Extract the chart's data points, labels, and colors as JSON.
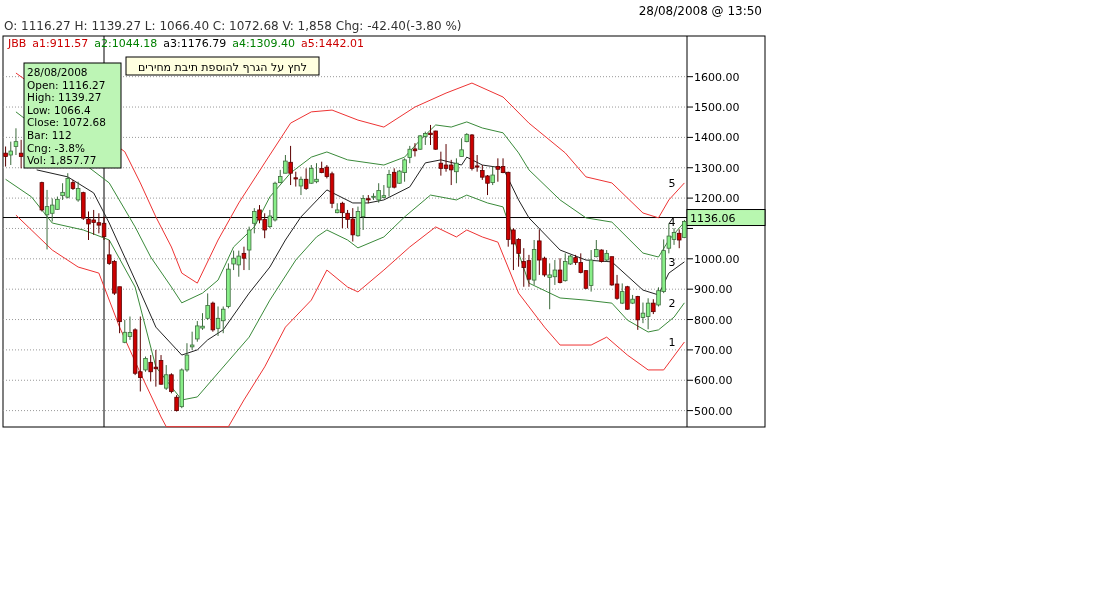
{
  "chart_data": {
    "type": "candlestick",
    "subtitle": "28/08/2008 @ 13:50",
    "annotations": [
      "O: 1116.27 H: 1139.27 L: 1066.40 C: 1072.68 V: 1,858 Chg: -42.40(-3.80 %)",
      "JBB",
      "a1:911.57",
      "a2:1044.18",
      "a3:1176.79",
      "a4:1309.40",
      "a5:1442.01",
      "28/08/2008",
      "Open:  1116.27",
      "High:  1139.27",
      "Low:  1066.4",
      "Close:  1072.68",
      "Bar:  112",
      "Cng:  -3.8%",
      "Vol:  1,857.77",
      "לחץ על הגרף להוספת תיבת מחירים"
    ],
    "categories": [
      null,
      null,
      null,
      null,
      null,
      null,
      null,
      null,
      null,
      null,
      null,
      null,
      null,
      null,
      null,
      null,
      null,
      null,
      null,
      null,
      null,
      null,
      null,
      null,
      null,
      null,
      null,
      null,
      null,
      null,
      null,
      null,
      null,
      null,
      null,
      null,
      null,
      null,
      null,
      null,
      null,
      null,
      null,
      null,
      null,
      null,
      null,
      null,
      null,
      null,
      null,
      null,
      null,
      null,
      null,
      null,
      null,
      null,
      null,
      null,
      null,
      null,
      null,
      null,
      null,
      null,
      null,
      null,
      null,
      null,
      null,
      null,
      null,
      null,
      null,
      null,
      null,
      null,
      null,
      null,
      null,
      null,
      null,
      null,
      null,
      null,
      null,
      null,
      null,
      null,
      null,
      null,
      null,
      null,
      null,
      null,
      null,
      null,
      null,
      null,
      null,
      null,
      null,
      null,
      null,
      null,
      null,
      null,
      null,
      null,
      null,
      null,
      null,
      null,
      null,
      null,
      null,
      null,
      null,
      null,
      null,
      null,
      null,
      null,
      null,
      null,
      null,
      null,
      null,
      null,
      null,
      null
    ],
    "ohlc": [
      [
        1348,
        1370,
        1304,
        1337
      ],
      [
        1342,
        1386,
        1309,
        1355
      ],
      [
        1370,
        1430,
        1342,
        1386
      ],
      [
        1348,
        1392,
        1298,
        1337
      ],
      null,
      null,
      null,
      [
        1251,
        1254,
        1156,
        1161
      ],
      [
        1145,
        1227,
        1031,
        1172
      ],
      [
        1150,
        1199,
        1123,
        1177
      ],
      [
        1163,
        1205,
        1161,
        1196
      ],
      [
        1208,
        1249,
        1194,
        1219
      ],
      [
        1203,
        1282,
        1199,
        1265
      ],
      [
        1251,
        1260,
        1227,
        1232
      ],
      [
        1194,
        1254,
        1188,
        1232
      ],
      [
        1218,
        1221,
        1128,
        1134
      ],
      [
        1131,
        1156,
        1062,
        1115
      ],
      [
        1128,
        1161,
        1079,
        1120
      ],
      [
        1119,
        1150,
        1084,
        1111
      ],
      [
        1117,
        1139,
        1062,
        1073
      ],
      [
        1013,
        1062,
        980,
        985
      ],
      [
        991,
        996,
        881,
        887
      ],
      [
        908,
        908,
        755,
        793
      ],
      [
        725,
        799,
        722,
        758
      ],
      [
        744,
        810,
        733,
        757
      ],
      [
        766,
        771,
        617,
        623
      ],
      [
        628,
        810,
        563,
        609
      ],
      [
        634,
        678,
        628,
        672
      ],
      [
        659,
        683,
        596,
        628
      ],
      [
        643,
        700,
        579,
        638
      ],
      [
        665,
        683,
        585,
        587
      ],
      [
        574,
        650,
        568,
        618
      ],
      [
        618,
        623,
        557,
        563
      ],
      [
        544,
        551,
        497,
        500
      ],
      [
        513,
        639,
        508,
        634
      ],
      [
        634,
        722,
        628,
        683
      ],
      [
        710,
        760,
        700,
        716
      ],
      [
        736,
        795,
        727,
        779
      ],
      [
        772,
        821,
        766,
        778
      ],
      [
        804,
        886,
        799,
        846
      ],
      [
        854,
        859,
        760,
        766
      ],
      [
        771,
        843,
        746,
        804
      ],
      [
        796,
        843,
        755,
        834
      ],
      [
        843,
        985,
        837,
        966
      ],
      [
        983,
        1027,
        963,
        1002
      ],
      [
        980,
        1027,
        941,
        1009
      ],
      [
        1018,
        1040,
        963,
        1002
      ],
      [
        1029,
        1106,
        963,
        1095
      ],
      [
        1117,
        1167,
        1084,
        1156
      ],
      [
        1161,
        1177,
        1117,
        1128
      ],
      [
        1130,
        1150,
        1068,
        1095
      ],
      [
        1106,
        1161,
        1101,
        1141
      ],
      [
        1128,
        1254,
        1123,
        1249
      ],
      [
        1251,
        1293,
        1249,
        1271
      ],
      [
        1282,
        1342,
        1282,
        1322
      ],
      [
        1318,
        1372,
        1243,
        1282
      ],
      [
        1267,
        1287,
        1238,
        1263
      ],
      [
        1240,
        1271,
        1210,
        1262
      ],
      [
        1262,
        1298,
        1227,
        1232
      ],
      [
        1249,
        1309,
        1247,
        1298
      ],
      [
        1254,
        1315,
        1249,
        1262
      ],
      [
        1298,
        1320,
        1282,
        1284
      ],
      [
        1302,
        1309,
        1265,
        1271
      ],
      [
        1280,
        1287,
        1167,
        1183
      ],
      [
        1152,
        1183,
        1150,
        1161
      ],
      [
        1183,
        1188,
        1101,
        1152
      ],
      [
        1150,
        1161,
        1101,
        1130
      ],
      [
        1131,
        1167,
        1057,
        1079
      ],
      [
        1076,
        1172,
        1073,
        1156
      ],
      [
        1139,
        1210,
        1095,
        1199
      ],
      [
        1198,
        1210,
        1183,
        1194
      ],
      [
        1203,
        1216,
        1194,
        1206
      ],
      [
        1194,
        1249,
        1185,
        1225
      ],
      [
        1202,
        1243,
        1199,
        1208
      ],
      [
        1236,
        1293,
        1205,
        1278
      ],
      [
        1285,
        1298,
        1232,
        1236
      ],
      [
        1249,
        1293,
        1247,
        1289
      ],
      [
        1284,
        1331,
        1254,
        1326
      ],
      [
        1334,
        1372,
        1315,
        1361
      ],
      [
        1362,
        1381,
        1337,
        1356
      ],
      [
        1361,
        1408,
        1359,
        1405
      ],
      [
        1403,
        1419,
        1375,
        1413
      ],
      [
        1414,
        1441,
        1375,
        1409
      ],
      [
        1421,
        1422,
        1359,
        1361
      ],
      [
        1315,
        1353,
        1274,
        1298
      ],
      [
        1309,
        1378,
        1287,
        1298
      ],
      [
        1309,
        1326,
        1243,
        1293
      ],
      [
        1287,
        1331,
        1249,
        1315
      ],
      [
        1337,
        1397,
        1337,
        1359
      ],
      [
        1386,
        1414,
        1384,
        1410
      ],
      [
        1408,
        1411,
        1291,
        1298
      ],
      [
        1306,
        1342,
        1287,
        1302
      ],
      [
        1291,
        1309,
        1260,
        1269
      ],
      [
        1273,
        1276,
        1210,
        1249
      ],
      [
        1251,
        1304,
        1243,
        1276
      ],
      [
        1304,
        1331,
        1254,
        1295
      ],
      [
        1304,
        1331,
        1282,
        1284
      ],
      [
        1285,
        1287,
        1040,
        1064
      ],
      [
        1095,
        1101,
        963,
        1049
      ],
      [
        1064,
        1068,
        974,
        1018
      ],
      [
        991,
        1035,
        908,
        971
      ],
      [
        994,
        1013,
        908,
        933
      ],
      [
        930,
        1062,
        914,
        1031
      ],
      [
        1059,
        1097,
        947,
        996
      ],
      [
        1002,
        1007,
        941,
        947
      ],
      [
        939,
        985,
        834,
        947
      ],
      [
        941,
        996,
        914,
        963
      ],
      [
        963,
        1002,
        919,
        922
      ],
      [
        928,
        1018,
        925,
        991
      ],
      [
        983,
        1013,
        980,
        1009
      ],
      [
        1004,
        1013,
        980,
        988
      ],
      [
        988,
        1018,
        952,
        955
      ],
      [
        961,
        963,
        900,
        903
      ],
      [
        912,
        1029,
        892,
        996
      ],
      [
        1007,
        1062,
        1005,
        1031
      ],
      [
        1029,
        1031,
        988,
        991
      ],
      [
        996,
        1029,
        991,
        1018
      ],
      [
        1007,
        1007,
        911,
        914
      ],
      [
        917,
        947,
        865,
        870
      ],
      [
        854,
        919,
        851,
        892
      ],
      [
        908,
        911,
        832,
        834
      ],
      [
        854,
        881,
        851,
        867
      ],
      [
        876,
        878,
        766,
        799
      ],
      [
        807,
        856,
        788,
        821
      ],
      [
        810,
        870,
        768,
        854
      ],
      [
        854,
        867,
        818,
        826
      ],
      [
        848,
        906,
        843,
        895
      ],
      [
        892,
        1064,
        887,
        1027
      ],
      [
        1035,
        1117,
        1018,
        1075
      ],
      [
        1064,
        1101,
        1046,
        1087
      ],
      [
        1084,
        1097,
        1035,
        1062
      ],
      [
        1070,
        1128,
        1068,
        1123
      ]
    ],
    "colors": [
      "#cc0000",
      "#88ee88",
      "#88ee88",
      "#cc0000",
      null,
      null,
      null,
      "#cc0000",
      "#88ee88",
      "#88ee88",
      "#88ee88",
      "#88ee88",
      "#88ee88",
      "#cc0000",
      "#88ee88",
      "#cc0000",
      "#cc0000",
      "#cc0000",
      "#cc0000",
      "#cc0000",
      "#cc0000",
      "#cc0000",
      "#cc0000",
      "#88ee88",
      "#88ee88",
      "#cc0000",
      "#cc0000",
      "#88ee88",
      "#cc0000",
      "#cc0000",
      "#cc0000",
      "#88ee88",
      "#cc0000",
      "#cc0000",
      "#88ee88",
      "#88ee88",
      "#88ee88",
      "#88ee88",
      "#88ee88",
      "#88ee88",
      "#cc0000",
      "#88ee88",
      "#88ee88",
      "#88ee88",
      "#88ee88",
      "#88ee88",
      "#cc0000",
      "#88ee88",
      "#88ee88",
      "#cc0000",
      "#cc0000",
      "#88ee88",
      "#88ee88",
      "#88ee88",
      "#88ee88",
      "#cc0000",
      "#cc0000",
      "#88ee88",
      "#cc0000",
      "#88ee88",
      "#88ee88",
      "#cc0000",
      "#cc0000",
      "#cc0000",
      "#88ee88",
      "#cc0000",
      "#cc0000",
      "#cc0000",
      "#88ee88",
      "#88ee88",
      "#cc0000",
      "#88ee88",
      "#88ee88",
      "#88ee88",
      "#88ee88",
      "#cc0000",
      "#88ee88",
      "#88ee88",
      "#88ee88",
      "#cc0000",
      "#88ee88",
      "#88ee88",
      "#cc0000",
      "#cc0000",
      "#cc0000",
      "#cc0000",
      "#cc0000",
      "#88ee88",
      "#88ee88",
      "#88ee88",
      "#cc0000",
      "#cc0000",
      "#cc0000",
      "#cc0000",
      "#88ee88",
      "#cc0000",
      "#cc0000",
      "#cc0000",
      "#cc0000",
      "#cc0000",
      "#cc0000",
      "#cc0000",
      "#88ee88",
      "#cc0000",
      "#cc0000",
      "#88ee88",
      "#88ee88",
      "#cc0000",
      "#88ee88",
      "#88ee88",
      "#cc0000",
      "#cc0000",
      "#cc0000",
      "#88ee88",
      "#88ee88",
      "#cc0000",
      "#88ee88",
      "#cc0000",
      "#cc0000",
      "#88ee88",
      "#cc0000",
      "#88ee88",
      "#cc0000",
      "#88ee88",
      "#88ee88",
      "#cc0000",
      "#88ee88",
      "#88ee88",
      "#88ee88",
      "#88ee88",
      "#cc0000",
      "#88ee88"
    ],
    "series": [
      {
        "type": "line",
        "name": "5",
        "color": "#ee3333",
        "values": [
          null,
          null,
          1612,
          null,
          null,
          null,
          null,
          null,
          null,
          null,
          null,
          null,
          null,
          null,
          null,
          null,
          null,
          null,
          null,
          null,
          null,
          null,
          null,
          1353,
          null,
          null,
          1250,
          null,
          null,
          1138,
          null,
          null,
          1039,
          null,
          953,
          null,
          null,
          920,
          null,
          null,
          null,
          1062,
          null,
          null,
          null,
          1184,
          null,
          null,
          null,
          null,
          1316,
          null,
          null,
          null,
          null,
          1447,
          null,
          null,
          null,
          1484,
          null,
          null,
          null,
          1490,
          null,
          null,
          null,
          null,
          1457,
          null,
          null,
          null,
          null,
          1434,
          null,
          null,
          null,
          null,
          null,
          1500,
          null,
          null,
          null,
          null,
          null,
          1546,
          null,
          null,
          null,
          null,
          1579,
          null,
          null,
          null,
          null,
          null,
          1533,
          null,
          null,
          null,
          null,
          1447,
          null,
          null,
          null,
          null,
          null,
          null,
          1349,
          null,
          null,
          null,
          1270,
          null,
          null,
          null,
          null,
          1250,
          null,
          null,
          null,
          null,
          null,
          1151,
          null,
          null,
          1135,
          null,
          1194,
          null,
          null,
          1250
        ]
      },
      {
        "type": "line",
        "name": "4",
        "color": "#3a8a3a",
        "values": [
          null,
          null,
          1484,
          null,
          null,
          null,
          null,
          null,
          null,
          null,
          null,
          null,
          null,
          null,
          null,
          null,
          null,
          null,
          null,
          null,
          1250,
          null,
          null,
          null,
          null,
          1105,
          null,
          null,
          1006,
          null,
          null,
          null,
          907,
          null,
          855,
          null,
          null,
          null,
          887,
          null,
          null,
          930,
          null,
          null,
          1039,
          null,
          null,
          null,
          1105,
          null,
          null,
          1204,
          null,
          null,
          null,
          1283,
          null,
          null,
          null,
          1335,
          null,
          null,
          1352,
          null,
          null,
          null,
          1326,
          null,
          null,
          null,
          null,
          null,
          null,
          1309,
          null,
          null,
          null,
          1335,
          null,
          null,
          1391,
          null,
          null,
          1441,
          null,
          null,
          1434,
          null,
          null,
          1451,
          null,
          null,
          1431,
          null,
          null,
          null,
          1415,
          null,
          null,
          1349,
          null,
          1293,
          null,
          null,
          null,
          null,
          null,
          1194,
          null,
          null,
          null,
          null,
          1135,
          null,
          null,
          null,
          null,
          1121,
          null,
          null,
          null,
          null,
          null,
          1019,
          null,
          null,
          1006,
          null,
          1062,
          null,
          null,
          1121
        ]
      },
      {
        "type": "line",
        "name": "3",
        "color": "#222222",
        "values": [
          null,
          null,
          null,
          null,
          null,
          null,
          1293,
          null,
          null,
          null,
          null,
          null,
          1270,
          null,
          null,
          null,
          null,
          1217,
          null,
          null,
          1118,
          null,
          null,
          null,
          null,
          930,
          null,
          null,
          null,
          775,
          null,
          null,
          null,
          null,
          683,
          null,
          null,
          700,
          null,
          733,
          null,
          null,
          766,
          null,
          null,
          null,
          null,
          887,
          null,
          null,
          null,
          973,
          null,
          null,
          1062,
          null,
          null,
          1138,
          null,
          null,
          null,
          null,
          1227,
          null,
          null,
          null,
          null,
          1184,
          null,
          null,
          1184,
          null,
          null,
          1194,
          null,
          null,
          null,
          null,
          1237,
          null,
          null,
          1316,
          null,
          null,
          1326,
          null,
          null,
          null,
          1309,
          1335,
          null,
          null,
          1309,
          null,
          null,
          null,
          1299,
          null,
          null,
          1194,
          null,
          1135,
          null,
          null,
          null,
          null,
          null,
          1029,
          null,
          null,
          null,
          null,
          996,
          null,
          null,
          null,
          null,
          990,
          null,
          null,
          null,
          null,
          null,
          897,
          null,
          null,
          881,
          null,
          953,
          null,
          null,
          990
        ]
      },
      {
        "type": "line",
        "name": "2",
        "color": "#3a8a3a",
        "values": [
          1262,
          null,
          null,
          null,
          null,
          1204,
          null,
          null,
          null,
          1118,
          null,
          null,
          null,
          null,
          null,
          1095,
          null,
          null,
          null,
          null,
          1062,
          null,
          null,
          null,
          null,
          907,
          null,
          null,
          null,
          644,
          null,
          null,
          null,
          null,
          535,
          null,
          null,
          545,
          null,
          null,
          null,
          624,
          null,
          null,
          null,
          null,
          null,
          742,
          null,
          null,
          null,
          864,
          null,
          null,
          null,
          null,
          996,
          null,
          null,
          null,
          1072,
          null,
          1095,
          null,
          null,
          null,
          1062,
          null,
          1036,
          null,
          null,
          null,
          null,
          1072,
          null,
          null,
          null,
          1138,
          null,
          null,
          null,
          null,
          1210,
          null,
          null,
          null,
          null,
          1194,
          null,
          1210,
          null,
          null,
          null,
          1184,
          null,
          null,
          1171,
          null,
          null,
          1019,
          null,
          920,
          null,
          null,
          null,
          null,
          null,
          871,
          null,
          null,
          null,
          null,
          864,
          null,
          null,
          null,
          null,
          854,
          null,
          null,
          798,
          null,
          null,
          null,
          759,
          null,
          766,
          null,
          null,
          808,
          null,
          855
        ]
      },
      {
        "type": "line",
        "name": "1",
        "color": "#ee3333",
        "values": [
          null,
          null,
          1144,
          null,
          null,
          null,
          null,
          null,
          null,
          1029,
          null,
          null,
          null,
          null,
          973,
          null,
          null,
          null,
          953,
          null,
          null,
          null,
          775,
          null,
          null,
          null,
          624,
          null,
          null,
          null,
          479,
          447,
          null,
          null,
          null,
          null,
          null,
          null,
          null,
          null,
          null,
          null,
          null,
          447,
          null,
          null,
          535,
          null,
          null,
          null,
          644,
          null,
          null,
          null,
          775,
          null,
          null,
          null,
          null,
          864,
          null,
          null,
          963,
          null,
          null,
          null,
          907,
          null,
          891,
          null,
          null,
          null,
          null,
          963,
          null,
          null,
          null,
          null,
          1039,
          null,
          null,
          null,
          null,
          1105,
          null,
          null,
          null,
          1072,
          null,
          1095,
          null,
          null,
          1072,
          null,
          null,
          1055,
          null,
          null,
          null,
          887,
          null,
          null,
          null,
          null,
          775,
          null,
          null,
          716,
          null,
          null,
          null,
          null,
          null,
          716,
          null,
          null,
          742,
          null,
          null,
          null,
          683,
          null,
          null,
          null,
          634,
          null,
          null,
          634,
          null,
          null,
          null,
          726
        ]
      }
    ],
    "ylim": [
      446,
      1734
    ],
    "yticks": [
      {
        "value": 500,
        "label": "500.00"
      },
      {
        "value": 600,
        "label": "600.00"
      },
      {
        "value": 700,
        "label": "700.00"
      },
      {
        "value": 800,
        "label": "800.00"
      },
      {
        "value": 900,
        "label": "900.00"
      },
      {
        "value": 1000,
        "label": "1000.00"
      },
      {
        "value": 1100,
        "label": null
      },
      {
        "value": 1200,
        "label": "1200.00"
      },
      {
        "value": 1300,
        "label": "1300.00"
      },
      {
        "value": 1400,
        "label": "1400.00"
      },
      {
        "value": 1500,
        "label": "1500.00"
      },
      {
        "value": 1600,
        "label": "1600.00"
      }
    ],
    "grid": "y",
    "tick_labels": "y",
    "ref_lines": [
      {
        "axis": "y",
        "value": 1136.06,
        "label": "1136.06",
        "color": "#000000"
      }
    ]
  }
}
